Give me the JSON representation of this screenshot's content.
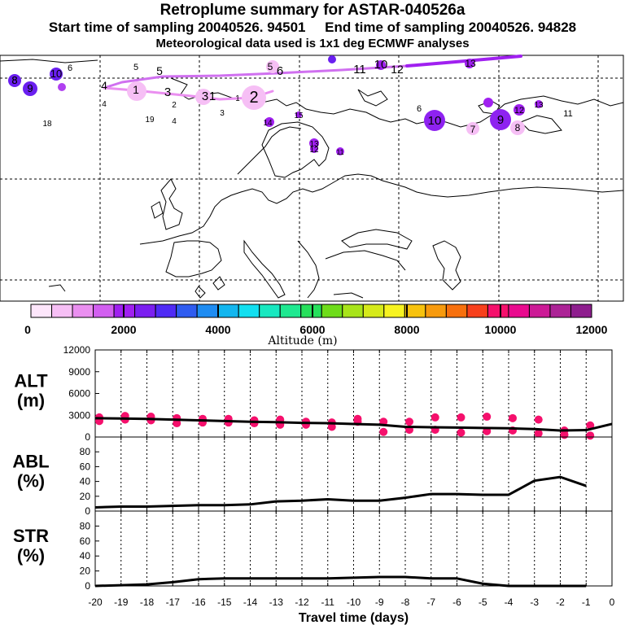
{
  "header": {
    "title": "Retroplume summary for ASTAR-040526a",
    "start_label": "Start time of sampling 20040526. 94501",
    "end_label": "End time of sampling 20040526. 94828",
    "subtitle": "Meteorological data used is 1x1 deg ECMWF analyses"
  },
  "colorbar": {
    "tick_labels": [
      "0",
      "2000",
      "4000",
      "6000",
      "8000",
      "10000",
      "12000"
    ],
    "label": "Altitude (m)",
    "colors": [
      "#fde6fb",
      "#f6bff5",
      "#ea8ff0",
      "#d25ff0",
      "#a020f0",
      "#7b1ff0",
      "#4f2bf5",
      "#2f5cf0",
      "#1e8cf2",
      "#12b6ef",
      "#12dff0",
      "#18e8c0",
      "#1ee890",
      "#26e05c",
      "#6edc1a",
      "#a8e41a",
      "#d6ea1a",
      "#f7f320",
      "#f7c20d",
      "#f79a0d",
      "#f7700d",
      "#f7401c",
      "#f5106c",
      "#e90a8e",
      "#cc1a96",
      "#ac2396",
      "#8e1e8e"
    ]
  },
  "map_labels": [
    {
      "text": "8"
    },
    {
      "text": "9"
    },
    {
      "text": "10"
    },
    {
      "text": "6"
    },
    {
      "text": "5"
    },
    {
      "text": "5"
    },
    {
      "text": "4"
    },
    {
      "text": "3"
    },
    {
      "text": "1"
    },
    {
      "text": "2"
    },
    {
      "text": "4"
    },
    {
      "text": "19"
    },
    {
      "text": "18"
    },
    {
      "text": "4"
    },
    {
      "text": "3"
    },
    {
      "text": "3"
    },
    {
      "text": "1"
    },
    {
      "text": "1"
    },
    {
      "text": "2"
    },
    {
      "text": "5"
    },
    {
      "text": "6"
    },
    {
      "text": "11"
    },
    {
      "text": "10"
    },
    {
      "text": "12"
    },
    {
      "text": "13"
    },
    {
      "text": "6"
    },
    {
      "text": "10"
    },
    {
      "text": "7"
    },
    {
      "text": "9"
    },
    {
      "text": "8"
    },
    {
      "text": "12"
    },
    {
      "text": "13"
    },
    {
      "text": "11"
    },
    {
      "text": "14"
    },
    {
      "text": "15"
    },
    {
      "text": "13"
    },
    {
      "text": "12"
    },
    {
      "text": "11"
    },
    {
      "text": "8"
    }
  ],
  "chart_data": [
    {
      "type": "line",
      "panel": "ALT",
      "ylabel_lines": [
        "ALT",
        "(m)"
      ],
      "ylim": [
        0,
        12000
      ],
      "yticks": [
        0,
        3000,
        6000,
        9000,
        12000
      ],
      "x": [
        -20,
        -19,
        -18,
        -17,
        -16,
        -15,
        -14,
        -13,
        -12,
        -11,
        -10,
        -9,
        -8,
        -7,
        -6,
        -5,
        -4,
        -3,
        -2,
        -1,
        0
      ],
      "series": [
        {
          "name": "mean altitude",
          "values": [
            2600,
            2550,
            2500,
            2400,
            2300,
            2200,
            2100,
            2050,
            1950,
            1900,
            1800,
            1700,
            1400,
            1350,
            1300,
            1250,
            1200,
            1100,
            900,
            950,
            1800
          ]
        }
      ],
      "scatter": [
        {
          "x": -20,
          "y": 2200
        },
        {
          "x": -20,
          "y": 2700
        },
        {
          "x": -19,
          "y": 2400
        },
        {
          "x": -19,
          "y": 2900
        },
        {
          "x": -18,
          "y": 2300
        },
        {
          "x": -18,
          "y": 2800
        },
        {
          "x": -17,
          "y": 1900
        },
        {
          "x": -17,
          "y": 2600
        },
        {
          "x": -16,
          "y": 2000
        },
        {
          "x": -16,
          "y": 2500
        },
        {
          "x": -15,
          "y": 2000
        },
        {
          "x": -15,
          "y": 2500
        },
        {
          "x": -14,
          "y": 1900
        },
        {
          "x": -14,
          "y": 2300
        },
        {
          "x": -13,
          "y": 1700
        },
        {
          "x": -13,
          "y": 2400
        },
        {
          "x": -12,
          "y": 1700
        },
        {
          "x": -12,
          "y": 2100
        },
        {
          "x": -11,
          "y": 1400
        },
        {
          "x": -11,
          "y": 2000
        },
        {
          "x": -10,
          "y": 2100
        },
        {
          "x": -10,
          "y": 2500
        },
        {
          "x": -9,
          "y": 700
        },
        {
          "x": -9,
          "y": 2100
        },
        {
          "x": -8,
          "y": 1000
        },
        {
          "x": -8,
          "y": 2100
        },
        {
          "x": -7,
          "y": 1000
        },
        {
          "x": -7,
          "y": 2700
        },
        {
          "x": -6,
          "y": 600
        },
        {
          "x": -6,
          "y": 2700
        },
        {
          "x": -5,
          "y": 800
        },
        {
          "x": -5,
          "y": 2800
        },
        {
          "x": -4,
          "y": 900
        },
        {
          "x": -4,
          "y": 2600
        },
        {
          "x": -3,
          "y": 500
        },
        {
          "x": -3,
          "y": 2400
        },
        {
          "x": -2,
          "y": 300
        },
        {
          "x": -2,
          "y": 900
        },
        {
          "x": -1,
          "y": 200
        },
        {
          "x": -1,
          "y": 1600
        }
      ]
    },
    {
      "type": "line",
      "panel": "ABL",
      "ylabel_lines": [
        "ABL",
        "(%)"
      ],
      "ylim": [
        0,
        100
      ],
      "yticks": [
        0,
        20,
        40,
        60,
        80
      ],
      "x": [
        -20,
        -19,
        -18,
        -17,
        -16,
        -15,
        -14,
        -13,
        -12,
        -11,
        -10,
        -9,
        -8,
        -7,
        -6,
        -5,
        -4,
        -3,
        -2,
        -1
      ],
      "series": [
        {
          "name": "ABL fraction",
          "values": [
            5,
            6,
            6,
            7,
            8,
            8,
            9,
            13,
            14,
            16,
            14,
            14,
            18,
            23,
            23,
            22,
            22,
            41,
            46,
            34
          ]
        }
      ]
    },
    {
      "type": "line",
      "panel": "STR",
      "ylabel_lines": [
        "STR",
        "(%)"
      ],
      "ylim": [
        0,
        100
      ],
      "yticks": [
        0,
        20,
        40,
        60,
        80
      ],
      "x": [
        -20,
        -19,
        -18,
        -17,
        -16,
        -15,
        -14,
        -13,
        -12,
        -11,
        -10,
        -9,
        -8,
        -7,
        -6,
        -5,
        -4,
        -3,
        -2,
        -1
      ],
      "series": [
        {
          "name": "stratosphere fraction",
          "values": [
            0,
            1,
            2,
            5,
            9,
            10,
            10,
            10,
            10,
            10,
            11,
            12,
            12,
            10,
            10,
            3,
            0,
            0,
            0,
            0
          ]
        }
      ],
      "xlabel": "Travel time (days)",
      "xtick_labels": [
        "-20",
        "-19",
        "-18",
        "-17",
        "-16",
        "-15",
        "-14",
        "-13",
        "-12",
        "-11",
        "-10",
        "-9",
        "-8",
        "-7",
        "-6",
        "-5",
        "-4",
        "-3",
        "-2",
        "-1",
        "0"
      ]
    }
  ]
}
